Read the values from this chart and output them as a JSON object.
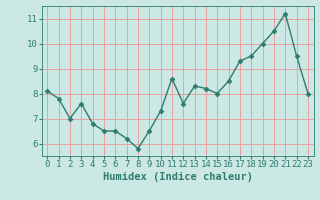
{
  "x": [
    0,
    1,
    2,
    3,
    4,
    5,
    6,
    7,
    8,
    9,
    10,
    11,
    12,
    13,
    14,
    15,
    16,
    17,
    18,
    19,
    20,
    21,
    22,
    23
  ],
  "y": [
    8.1,
    7.8,
    7.0,
    7.6,
    6.8,
    6.5,
    6.5,
    6.2,
    5.8,
    6.5,
    7.3,
    8.6,
    7.6,
    8.3,
    8.2,
    8.0,
    8.5,
    9.3,
    9.5,
    10.0,
    10.5,
    11.2,
    9.5,
    8.0
  ],
  "xlabel": "Humidex (Indice chaleur)",
  "ylim": [
    5.5,
    11.5
  ],
  "xlim": [
    -0.5,
    23.5
  ],
  "yticks": [
    6,
    7,
    8,
    9,
    10,
    11
  ],
  "xticks": [
    0,
    1,
    2,
    3,
    4,
    5,
    6,
    7,
    8,
    9,
    10,
    11,
    12,
    13,
    14,
    15,
    16,
    17,
    18,
    19,
    20,
    21,
    22,
    23
  ],
  "line_color": "#2e7d6e",
  "marker": "D",
  "marker_size": 2.5,
  "line_width": 1.0,
  "bg_color": "#cce8e5",
  "grid_color": "#e8a0a0",
  "xlabel_fontsize": 7.5,
  "tick_fontsize": 6.5
}
